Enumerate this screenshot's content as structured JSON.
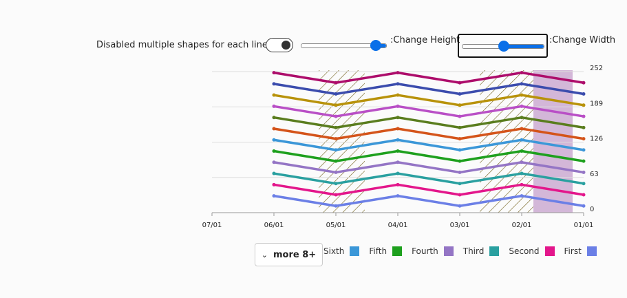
{
  "controls": {
    "toggle_label": "Disabled multiple shapes for each line",
    "height_label": ":Change Height",
    "width_label": ":Change Width",
    "more_button": "more 8+"
  },
  "chart_data": {
    "type": "line",
    "categories": [
      "07/01",
      "06/01",
      "05/01",
      "04/01",
      "03/01",
      "02/01",
      "01/01"
    ],
    "ylim": [
      0,
      252
    ],
    "yticks": [
      0,
      63,
      126,
      189,
      252
    ],
    "grid": true,
    "series": [
      {
        "name": "First",
        "color": "#6b7fe6",
        "values": [
          null,
          30,
          12,
          30,
          12,
          30,
          12
        ]
      },
      {
        "name": "Second",
        "color": "#e3168b",
        "values": [
          null,
          50,
          32,
          50,
          32,
          50,
          32
        ]
      },
      {
        "name": "Third",
        "color": "#2aa0a0",
        "values": [
          null,
          70,
          52,
          70,
          52,
          70,
          52
        ]
      },
      {
        "name": "Fourth",
        "color": "#9475c5",
        "values": [
          null,
          90,
          72,
          90,
          72,
          90,
          72
        ]
      },
      {
        "name": "Fifth",
        "color": "#1ea01e",
        "values": [
          null,
          110,
          92,
          110,
          92,
          110,
          92
        ]
      },
      {
        "name": "Sixth",
        "color": "#3b97d8",
        "values": [
          null,
          130,
          112,
          130,
          112,
          130,
          112
        ]
      },
      {
        "color": "#d4541a",
        "values": [
          null,
          150,
          132,
          150,
          132,
          150,
          132
        ]
      },
      {
        "color": "#5a7d1e",
        "values": [
          null,
          170,
          152,
          170,
          152,
          170,
          152
        ]
      },
      {
        "color": "#b94fc6",
        "values": [
          null,
          190,
          172,
          190,
          172,
          190,
          172
        ]
      },
      {
        "color": "#b8920a",
        "values": [
          null,
          210,
          192,
          210,
          192,
          210,
          192
        ]
      },
      {
        "color": "#3b4cad",
        "values": [
          null,
          230,
          212,
          230,
          212,
          230,
          212
        ]
      },
      {
        "color": "#ad0d6b",
        "values": [
          null,
          250,
          232,
          250,
          232,
          250,
          232
        ]
      }
    ]
  }
}
